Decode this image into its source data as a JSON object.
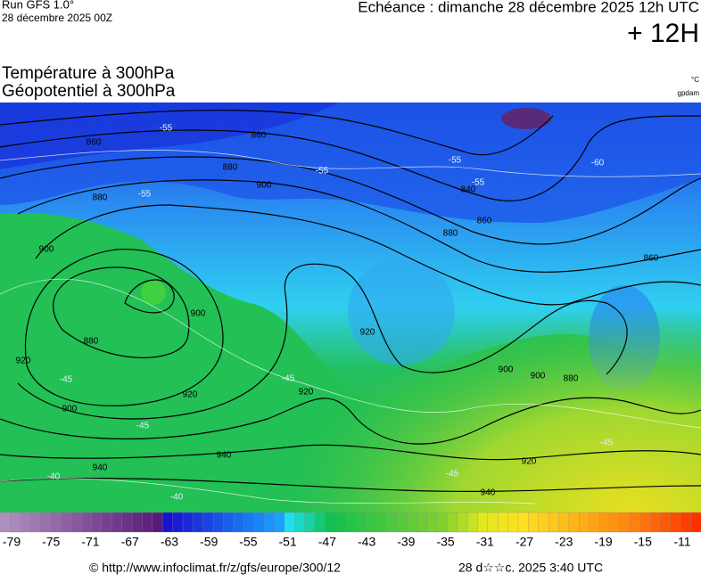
{
  "header": {
    "model": "Run GFS 1.0°",
    "run": "28 décembre 2025 00Z",
    "valid": "Echéance : dimanche 28 décembre 2025 12h UTC",
    "lead": "+ 12H"
  },
  "titles": {
    "temperature": "Température à 300hPa",
    "geopotential": "Géopotentiel à 300hPa",
    "temperature_unit": "°C",
    "geopotential_unit": "gpdam"
  },
  "geopotential_labels": [
    "860",
    "860",
    "880",
    "900",
    "880",
    "900",
    "840",
    "860",
    "880",
    "860",
    "900",
    "880",
    "920",
    "920",
    "900",
    "920",
    "920",
    "900",
    "900",
    "880",
    "940",
    "940",
    "920",
    "940"
  ],
  "temperature_labels": [
    "-55",
    "-55",
    "-55",
    "-55",
    "-55",
    "-60",
    "-45",
    "-45",
    "-45",
    "-40",
    "-40",
    "-45",
    "-45"
  ],
  "colorbar": {
    "ticks": [
      -79,
      -75,
      -71,
      -67,
      -63,
      -59,
      -55,
      -51,
      -47,
      -43,
      -39,
      -35,
      -31,
      -27,
      -23,
      -19,
      -15,
      -11
    ]
  },
  "footer": {
    "url": "© http://www.infoclimat.fr/z/gfs/europe/300/12",
    "date": "28 d☆☆c. 2025  3:40 UTC"
  }
}
